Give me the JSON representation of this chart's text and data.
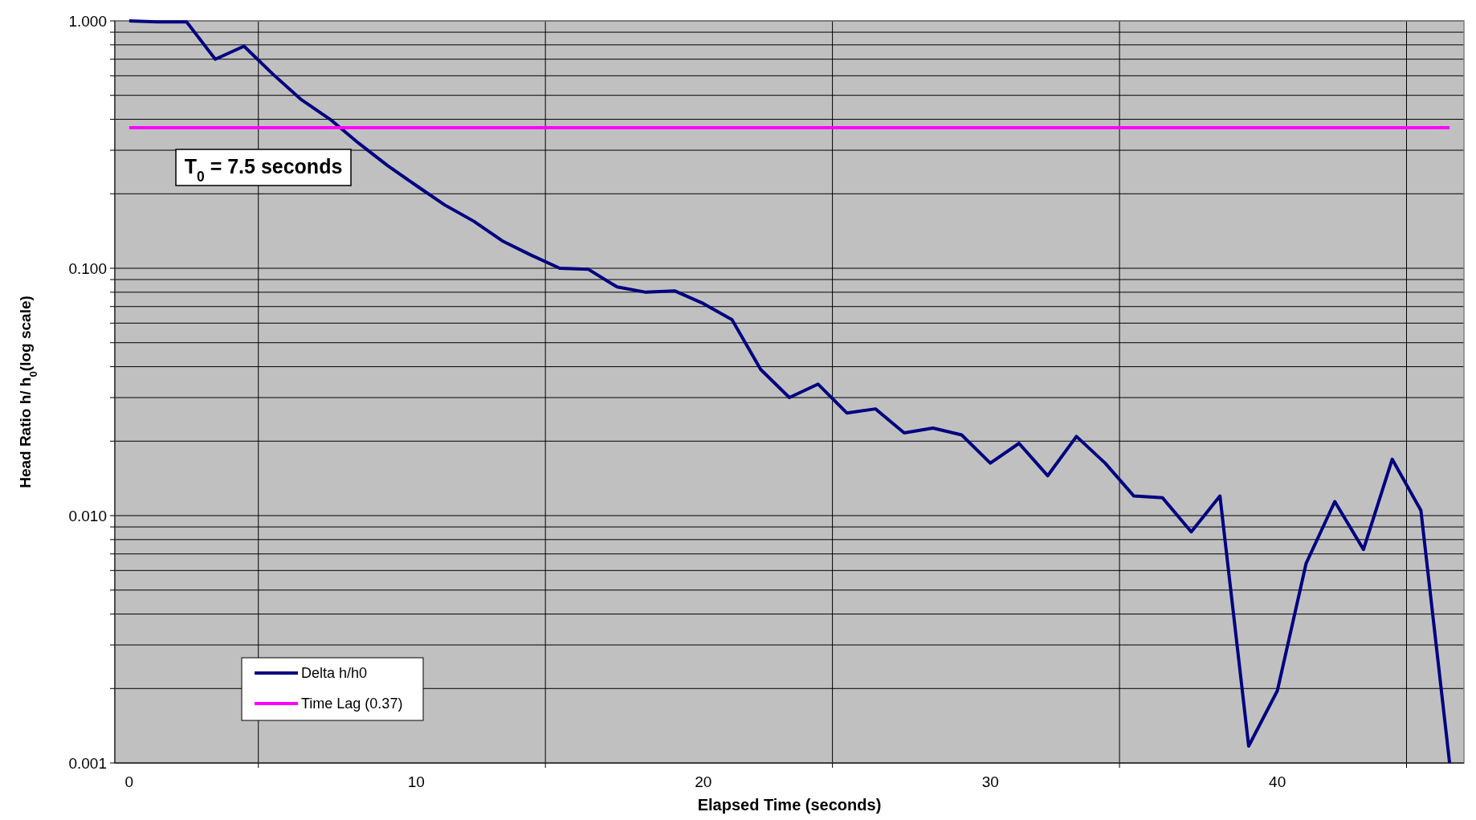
{
  "chart_data": {
    "type": "line",
    "xlabel": "Elapsed Time  (seconds)",
    "ylabel": "Head Ratio  h/ h$_{0}$(log scale)",
    "annotations": [
      "T$_{0}$ = 7.5 seconds"
    ],
    "x": [
      0,
      1,
      2,
      3,
      4,
      5,
      6,
      7,
      8,
      9,
      10,
      11,
      12,
      13,
      14,
      15,
      16,
      17,
      18,
      19,
      20,
      21,
      22,
      23,
      24,
      25,
      26,
      27,
      28,
      29,
      30,
      31,
      32,
      33,
      34,
      35,
      36,
      37,
      38,
      39,
      40,
      41,
      42,
      43,
      44,
      45,
      46
    ],
    "series": [
      {
        "name": "Delta h/h0",
        "color": "#000080",
        "values": [
          1.0,
          0.99,
          0.99,
          0.7,
          0.79,
          0.61,
          0.48,
          0.4,
          0.32,
          0.26,
          0.216,
          0.18,
          0.155,
          0.129,
          0.113,
          0.1,
          0.099,
          0.084,
          0.08,
          0.081,
          0.072,
          0.062,
          0.039,
          0.03,
          0.034,
          0.026,
          0.027,
          0.0216,
          0.0226,
          0.0212,
          0.0163,
          0.0196,
          0.0145,
          0.0209,
          0.0163,
          0.012,
          0.0118,
          0.0086,
          0.012,
          0.00117,
          0.00196,
          0.0064,
          0.0114,
          0.0073,
          0.0169,
          0.0105,
          0.001
        ]
      },
      {
        "name": "Time Lag (0.37)",
        "color": "#ff00ff",
        "values": [
          0.37,
          0.37,
          0.37,
          0.37,
          0.37,
          0.37,
          0.37,
          0.37,
          0.37,
          0.37,
          0.37,
          0.37,
          0.37,
          0.37,
          0.37,
          0.37,
          0.37,
          0.37,
          0.37,
          0.37,
          0.37,
          0.37,
          0.37,
          0.37,
          0.37,
          0.37,
          0.37,
          0.37,
          0.37,
          0.37,
          0.37,
          0.37,
          0.37,
          0.37,
          0.37,
          0.37,
          0.37,
          0.37,
          0.37,
          0.37,
          0.37,
          0.37,
          0.37,
          0.37,
          0.37,
          0.37,
          0.37
        ]
      }
    ],
    "xlim": [
      -0.5,
      46.5
    ],
    "xticks": [
      0,
      10,
      20,
      30,
      40,
      {
        "value": 4.5,
        "label": null
      },
      {
        "value": 14.5,
        "label": null
      },
      {
        "value": 24.5,
        "label": null
      },
      {
        "value": 34.5,
        "label": null
      },
      {
        "value": 44.5,
        "label": null
      }
    ],
    "ylim": [
      0.001,
      1
    ],
    "log": true,
    "yticks": [
      {
        "value": 0.001,
        "label": "0.001"
      },
      {
        "value": 0.002,
        "label": null
      },
      {
        "value": 0.003,
        "label": null
      },
      {
        "value": 0.004,
        "label": null
      },
      {
        "value": 0.005,
        "label": null
      },
      {
        "value": 0.006,
        "label": null
      },
      {
        "value": 0.007,
        "label": null
      },
      {
        "value": 0.008,
        "label": null
      },
      {
        "value": 0.009,
        "label": null
      },
      {
        "value": 0.01,
        "label": "0.010"
      },
      {
        "value": 0.02,
        "label": null
      },
      {
        "value": 0.03,
        "label": null
      },
      {
        "value": 0.04,
        "label": null
      },
      {
        "value": 0.05,
        "label": null
      },
      {
        "value": 0.06,
        "label": null
      },
      {
        "value": 0.07,
        "label": null
      },
      {
        "value": 0.08,
        "label": null
      },
      {
        "value": 0.09,
        "label": null
      },
      {
        "value": 0.1,
        "label": "0.100"
      },
      {
        "value": 0.2,
        "label": null
      },
      {
        "value": 0.3,
        "label": null
      },
      {
        "value": 0.4,
        "label": null
      },
      {
        "value": 0.5,
        "label": null
      },
      {
        "value": 0.6,
        "label": null
      },
      {
        "value": 0.7,
        "label": null
      },
      {
        "value": 0.8,
        "label": null
      },
      {
        "value": 0.9,
        "label": null
      },
      {
        "value": 1,
        "label": "1.000"
      }
    ],
    "grid": true,
    "legend": "bottom left",
    "marker": "none",
    "line_style": "solid"
  }
}
